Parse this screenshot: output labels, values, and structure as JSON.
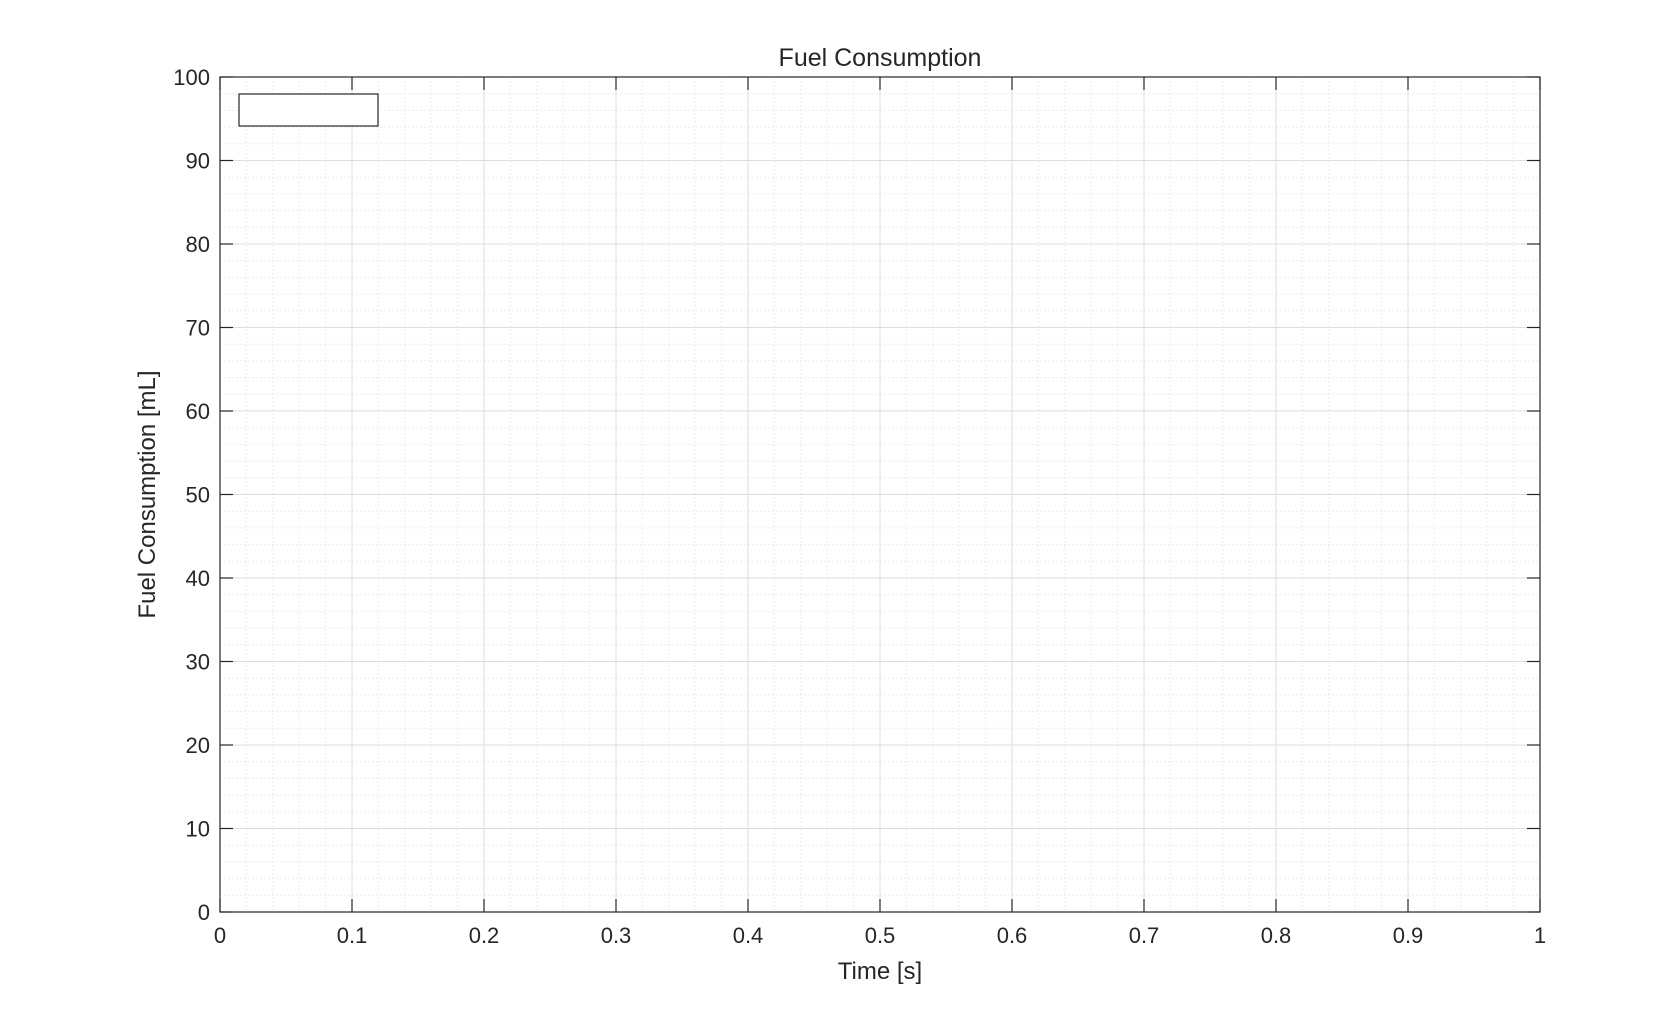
{
  "chart_data": {
    "type": "line",
    "title": "Fuel Consumption",
    "xlabel": "Time [s]",
    "ylabel": "Fuel Consumption [mL]",
    "xlim": [
      0,
      1
    ],
    "ylim": [
      0,
      100
    ],
    "xticks": [
      0,
      0.1,
      0.2,
      0.3,
      0.4,
      0.5,
      0.6,
      0.7,
      0.8,
      0.9,
      1
    ],
    "xtick_labels": [
      "0",
      "0.1",
      "0.2",
      "0.3",
      "0.4",
      "0.5",
      "0.6",
      "0.7",
      "0.8",
      "0.9",
      "1"
    ],
    "yticks": [
      0,
      10,
      20,
      30,
      40,
      50,
      60,
      70,
      80,
      90,
      100
    ],
    "ytick_labels": [
      "0",
      "10",
      "20",
      "30",
      "40",
      "50",
      "60",
      "70",
      "80",
      "90",
      "100"
    ],
    "grid": true,
    "minor_grid": true,
    "legend": {
      "placement": "top-left",
      "entries": []
    },
    "series": []
  },
  "colors": {
    "axis": "#262626",
    "major_grid": "#dcdcdc",
    "minor_grid": "#e6e6e6",
    "legend_border": "#262626"
  }
}
